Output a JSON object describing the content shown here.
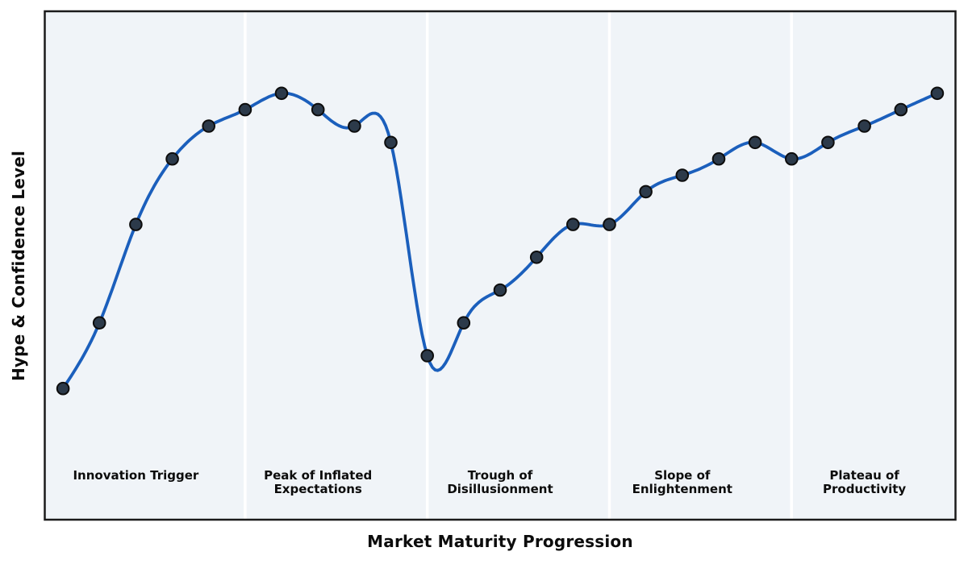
{
  "chart_data": {
    "type": "line",
    "title": "",
    "xlabel": "Market Maturity Progression",
    "ylabel": "Hype & Confidence Level",
    "x": [
      1,
      2,
      3,
      4,
      5,
      6,
      7,
      8,
      9,
      10,
      11,
      12,
      13,
      14,
      15,
      16,
      17,
      18,
      19,
      20,
      21,
      22,
      23,
      24,
      25
    ],
    "values": [
      10,
      22,
      40,
      52,
      58,
      61,
      64,
      61,
      58,
      55,
      16,
      22,
      28,
      34,
      40,
      40,
      46,
      49,
      52,
      55,
      52,
      55,
      58,
      61,
      64
    ],
    "xlim": [
      0.5,
      25.5
    ],
    "ylim": [
      -14,
      79
    ],
    "grid": false,
    "legend": "none",
    "tick_labels": "none",
    "interpolation": "cubic-spline",
    "marker": "circle",
    "phase_boundaries": [
      6,
      11,
      16,
      21
    ],
    "phases": [
      {
        "lines": [
          "Innovation Trigger"
        ],
        "center_x": 3
      },
      {
        "lines": [
          "Peak of Inflated",
          "Expectations"
        ],
        "center_x": 8
      },
      {
        "lines": [
          "Trough of",
          "Disillusionment"
        ],
        "center_x": 13
      },
      {
        "lines": [
          "Slope of",
          "Enlightenment"
        ],
        "center_x": 18
      },
      {
        "lines": [
          "Plateau of",
          "Productivity"
        ],
        "center_x": 23
      }
    ],
    "colors": {
      "line": "#1b5fbc",
      "marker_fill": "#2c3a4a",
      "marker_edge": "#0d0d0d",
      "panel": "#f0f4f8",
      "divider": "#ffffff",
      "border": "#1b1b1b",
      "text": "#0c0c0c",
      "background": "#ffffff"
    }
  }
}
